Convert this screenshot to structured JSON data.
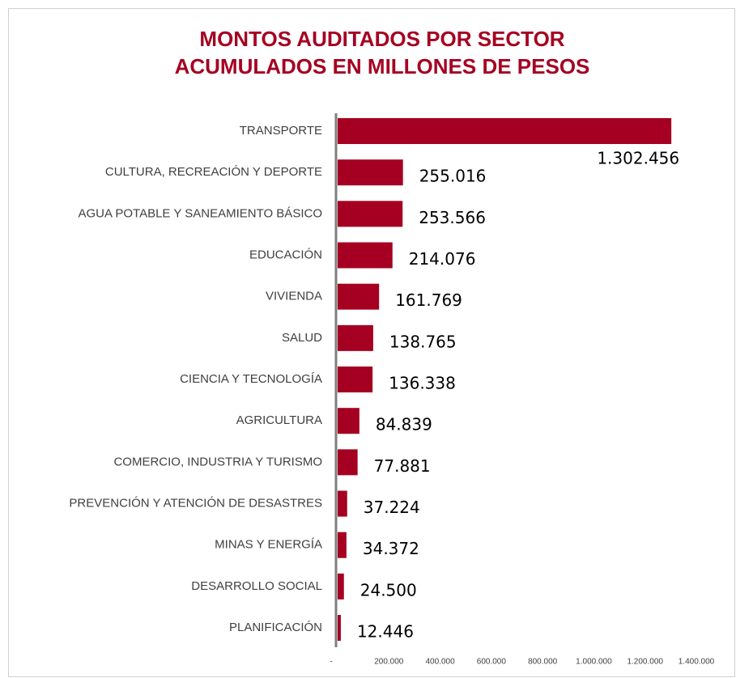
{
  "chart_data": {
    "type": "barh",
    "title": [
      "MONTOS AUDITADOS POR SECTOR",
      "ACUMULADOS EN MILLONES DE PESOS"
    ],
    "categories": [
      "TRANSPORTE",
      "CULTURA, RECREACIÓN Y DEPORTE",
      "AGUA POTABLE Y SANEAMIENTO BÁSICO",
      "EDUCACIÓN",
      "VIVIENDA",
      "SALUD",
      "CIENCIA Y TECNOLOGÍA",
      "AGRICULTURA",
      "COMERCIO, INDUSTRIA Y TURISMO",
      "PREVENCIÓN Y ATENCIÓN DE DESASTRES",
      "MINAS Y ENERGÍA",
      "DESARROLLO SOCIAL",
      "PLANIFICACIÓN"
    ],
    "values": [
      1302456,
      255016,
      253566,
      214076,
      161769,
      138765,
      136338,
      84839,
      77881,
      37224,
      34372,
      24500,
      12446
    ],
    "value_labels": [
      "1.302.456",
      "255.016",
      "253.566",
      "214.076",
      "161.769",
      "138.765",
      "136.338",
      "84.839",
      "77.881",
      "37.224",
      "34.372",
      "24.500",
      "12.446"
    ],
    "color": "#a50021",
    "xlim": [
      0,
      1400000
    ],
    "xticks": [
      {
        "value": 0,
        "label": "-"
      },
      {
        "value": 200000,
        "label": "200.000"
      },
      {
        "value": 400000,
        "label": "400.000"
      },
      {
        "value": 600000,
        "label": "600.000"
      },
      {
        "value": 800000,
        "label": "800.000"
      },
      {
        "value": 1000000,
        "label": "1.000.000"
      },
      {
        "value": 1200000,
        "label": "1.200.000"
      },
      {
        "value": 1400000,
        "label": "1.400.000"
      }
    ],
    "grid": false
  }
}
